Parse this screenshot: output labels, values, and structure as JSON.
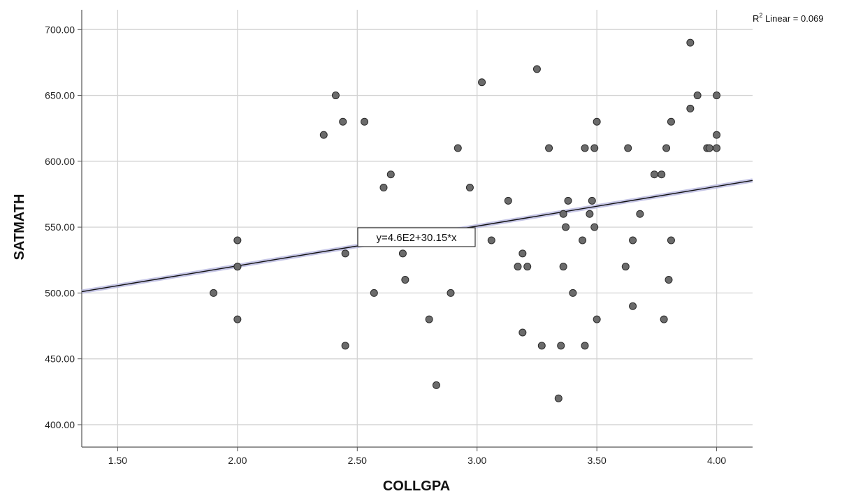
{
  "chart_data": {
    "type": "scatter",
    "title": "",
    "xlabel": "COLLGPA",
    "ylabel": "SATMATH",
    "xlim": [
      1.35,
      4.15
    ],
    "ylim": [
      383,
      715
    ],
    "x_ticks": [
      "1.50",
      "2.00",
      "2.50",
      "3.00",
      "3.50",
      "4.00"
    ],
    "y_ticks": [
      "400.00",
      "450.00",
      "500.00",
      "550.00",
      "600.00",
      "650.00",
      "700.00"
    ],
    "grid": true,
    "fit_line": {
      "intercept": 460.3,
      "slope": 30.15,
      "label": "y=4.6E2+30.15*x"
    },
    "r2_label": {
      "prefix": "R",
      "sup": "2",
      "suffix": " Linear = 0.069"
    },
    "colors": {
      "point": "#6b6b6b",
      "point_edge": "#2a2a2a",
      "fit_line": "#111111",
      "fit_halo": "#b8b8e0",
      "grid": "#d3d3d3",
      "axis": "#555555"
    },
    "points": [
      [
        1.9,
        500
      ],
      [
        2.0,
        540
      ],
      [
        2.0,
        520
      ],
      [
        2.0,
        520
      ],
      [
        2.0,
        480
      ],
      [
        2.36,
        620
      ],
      [
        2.41,
        650
      ],
      [
        2.44,
        630
      ],
      [
        2.45,
        530
      ],
      [
        2.45,
        460
      ],
      [
        2.53,
        630
      ],
      [
        2.57,
        500
      ],
      [
        2.61,
        580
      ],
      [
        2.64,
        590
      ],
      [
        2.69,
        530
      ],
      [
        2.7,
        510
      ],
      [
        2.8,
        480
      ],
      [
        2.83,
        430
      ],
      [
        2.89,
        500
      ],
      [
        2.92,
        610
      ],
      [
        2.97,
        580
      ],
      [
        3.02,
        660
      ],
      [
        3.06,
        540
      ],
      [
        3.13,
        570
      ],
      [
        3.17,
        520
      ],
      [
        3.19,
        530
      ],
      [
        3.19,
        470
      ],
      [
        3.21,
        520
      ],
      [
        3.25,
        670
      ],
      [
        3.27,
        460
      ],
      [
        3.3,
        610
      ],
      [
        3.34,
        420
      ],
      [
        3.35,
        460
      ],
      [
        3.36,
        560
      ],
      [
        3.36,
        520
      ],
      [
        3.37,
        550
      ],
      [
        3.38,
        570
      ],
      [
        3.4,
        500
      ],
      [
        3.44,
        540
      ],
      [
        3.45,
        610
      ],
      [
        3.45,
        460
      ],
      [
        3.47,
        560
      ],
      [
        3.48,
        570
      ],
      [
        3.49,
        610
      ],
      [
        3.49,
        550
      ],
      [
        3.5,
        630
      ],
      [
        3.5,
        480
      ],
      [
        3.62,
        520
      ],
      [
        3.63,
        610
      ],
      [
        3.65,
        540
      ],
      [
        3.65,
        490
      ],
      [
        3.68,
        560
      ],
      [
        3.74,
        590
      ],
      [
        3.77,
        590
      ],
      [
        3.78,
        480
      ],
      [
        3.79,
        610
      ],
      [
        3.8,
        510
      ],
      [
        3.81,
        630
      ],
      [
        3.81,
        540
      ],
      [
        3.89,
        690
      ],
      [
        3.89,
        640
      ],
      [
        3.92,
        650
      ],
      [
        3.96,
        610
      ],
      [
        3.97,
        610
      ],
      [
        4.0,
        650
      ],
      [
        4.0,
        620
      ],
      [
        4.0,
        610
      ]
    ]
  }
}
